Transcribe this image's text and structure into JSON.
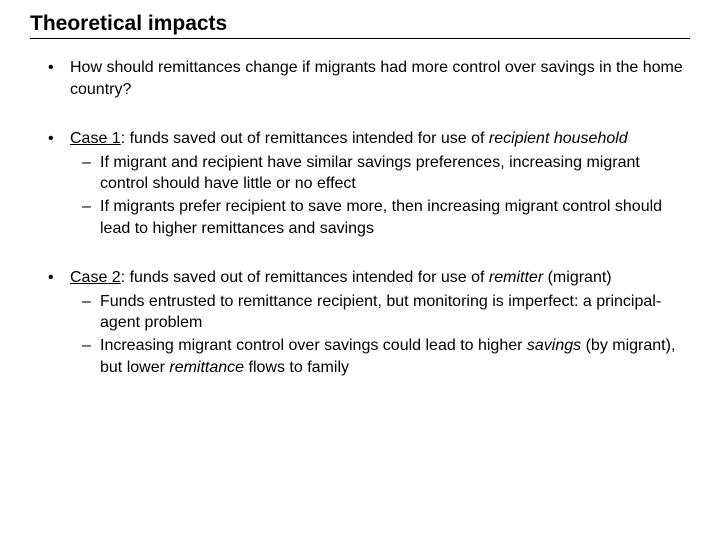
{
  "title": "Theoretical impacts",
  "bullets": {
    "q": "How should remittances change if migrants had more control over savings in the home country?",
    "case1": {
      "label": "Case 1",
      "lead_a": ": funds saved out of remittances intended for use of ",
      "lead_b_italic": "recipient household",
      "s1": "If migrant and recipient have similar savings preferences, increasing migrant control should have little or no effect",
      "s2": "If migrants prefer recipient to save more, then increasing migrant control should lead to higher remittances and savings"
    },
    "case2": {
      "label": "Case 2",
      "lead_a": ": funds saved out of remittances intended for use of ",
      "lead_b_italic": "remitter",
      "lead_c": " (migrant)",
      "s1": "Funds entrusted to remittance recipient, but monitoring is imperfect: a principal-agent problem",
      "s2_a": "Increasing migrant control over savings could lead to higher ",
      "s2_b_italic": "savings",
      "s2_c": " (by migrant), but lower ",
      "s2_d_italic": "remittance",
      "s2_e": " flows to family"
    }
  },
  "style": {
    "title_fontsize": 21,
    "body_fontsize": 16,
    "text_color": "#000000",
    "bg_color": "#ffffff",
    "rule_color": "#000000"
  }
}
